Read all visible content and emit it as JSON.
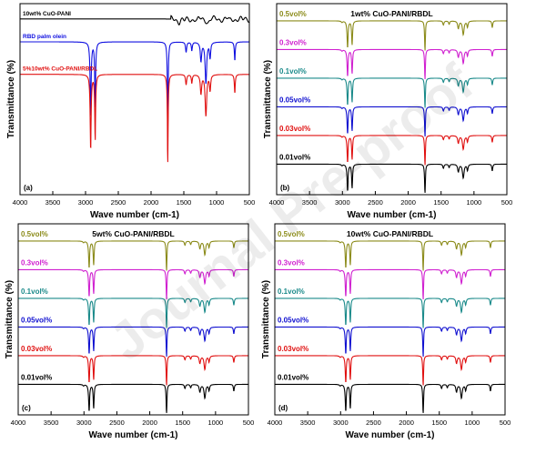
{
  "watermark": "Journal Pre-proof",
  "chart_data": [
    {
      "panel": "(a)",
      "type": "line",
      "title": "",
      "xlabel": "Wave number (cm-1)",
      "ylabel": "Transmittance (%)",
      "xlim": [
        4000,
        500
      ],
      "xticks": [
        4000,
        3500,
        3000,
        2500,
        2000,
        1500,
        1000,
        500
      ],
      "series": [
        {
          "name": "10wt% CuO-PANI",
          "color": "#000000",
          "baseline": 0.92,
          "kind": "pani"
        },
        {
          "name": "RBD palm olein",
          "color": "#1010e0",
          "baseline": 0.8,
          "kind": "palm"
        },
        {
          "name": "5%10wt% CuO-PANI/RBDL",
          "color": "#e01010",
          "baseline": 0.63,
          "kind": "palm"
        }
      ]
    },
    {
      "panel": "(b)",
      "type": "line",
      "title": "1wt% CuO-PANI/RBDL",
      "xlabel": "Wave number (cm-1)",
      "ylabel": "Transmittance (%)",
      "xlim": [
        4000,
        500
      ],
      "xticks": [
        4000,
        3500,
        3000,
        2500,
        2000,
        1500,
        1000,
        500
      ],
      "series": [
        {
          "name": "0.5vol%",
          "color": "#8b8b1a",
          "baseline": 0.91,
          "kind": "stack"
        },
        {
          "name": "0.3vol%",
          "color": "#d020d0",
          "baseline": 0.76,
          "kind": "stack"
        },
        {
          "name": "0.1vol%",
          "color": "#1a8a8a",
          "baseline": 0.61,
          "kind": "stack"
        },
        {
          "name": "0.05vol%",
          "color": "#1010d0",
          "baseline": 0.46,
          "kind": "stack"
        },
        {
          "name": "0.03vol%",
          "color": "#e01010",
          "baseline": 0.31,
          "kind": "stack"
        },
        {
          "name": "0.01vol%",
          "color": "#000000",
          "baseline": 0.16,
          "kind": "stack"
        }
      ]
    },
    {
      "panel": "(c)",
      "type": "line",
      "title": "5wt% CuO-PANI/RBDL",
      "xlabel": "Wave number (cm-1)",
      "ylabel": "Transmittance (%)",
      "xlim": [
        4000,
        500
      ],
      "xticks": [
        4000,
        3500,
        3000,
        2500,
        2000,
        1500,
        1000,
        500
      ],
      "series": [
        {
          "name": "0.5vol%",
          "color": "#8b8b1a",
          "baseline": 0.91,
          "kind": "stack"
        },
        {
          "name": "0.3vol%",
          "color": "#d020d0",
          "baseline": 0.76,
          "kind": "stack"
        },
        {
          "name": "0.1vol%",
          "color": "#1a8a8a",
          "baseline": 0.61,
          "kind": "stack"
        },
        {
          "name": "0.05vol%",
          "color": "#1010d0",
          "baseline": 0.46,
          "kind": "stack"
        },
        {
          "name": "0.03vol%",
          "color": "#e01010",
          "baseline": 0.31,
          "kind": "stack"
        },
        {
          "name": "0.01vol%",
          "color": "#000000",
          "baseline": 0.16,
          "kind": "stack"
        }
      ]
    },
    {
      "panel": "(d)",
      "type": "line",
      "title": "10wt% CuO-PANI/RBDL",
      "xlabel": "Wave number (cm-1)",
      "ylabel": "Transmittance (%)",
      "xlim": [
        4000,
        500
      ],
      "xticks": [
        4000,
        3500,
        3000,
        2500,
        2000,
        1500,
        1000,
        500
      ],
      "series": [
        {
          "name": "0.5vol%",
          "color": "#8b8b1a",
          "baseline": 0.91,
          "kind": "stack"
        },
        {
          "name": "0.3vol%",
          "color": "#d020d0",
          "baseline": 0.76,
          "kind": "stack"
        },
        {
          "name": "0.1vol%",
          "color": "#1a8a8a",
          "baseline": 0.61,
          "kind": "stack"
        },
        {
          "name": "0.05vol%",
          "color": "#1010d0",
          "baseline": 0.46,
          "kind": "stack"
        },
        {
          "name": "0.03vol%",
          "color": "#e01010",
          "baseline": 0.31,
          "kind": "stack"
        },
        {
          "name": "0.01vol%",
          "color": "#000000",
          "baseline": 0.16,
          "kind": "stack"
        }
      ]
    }
  ]
}
